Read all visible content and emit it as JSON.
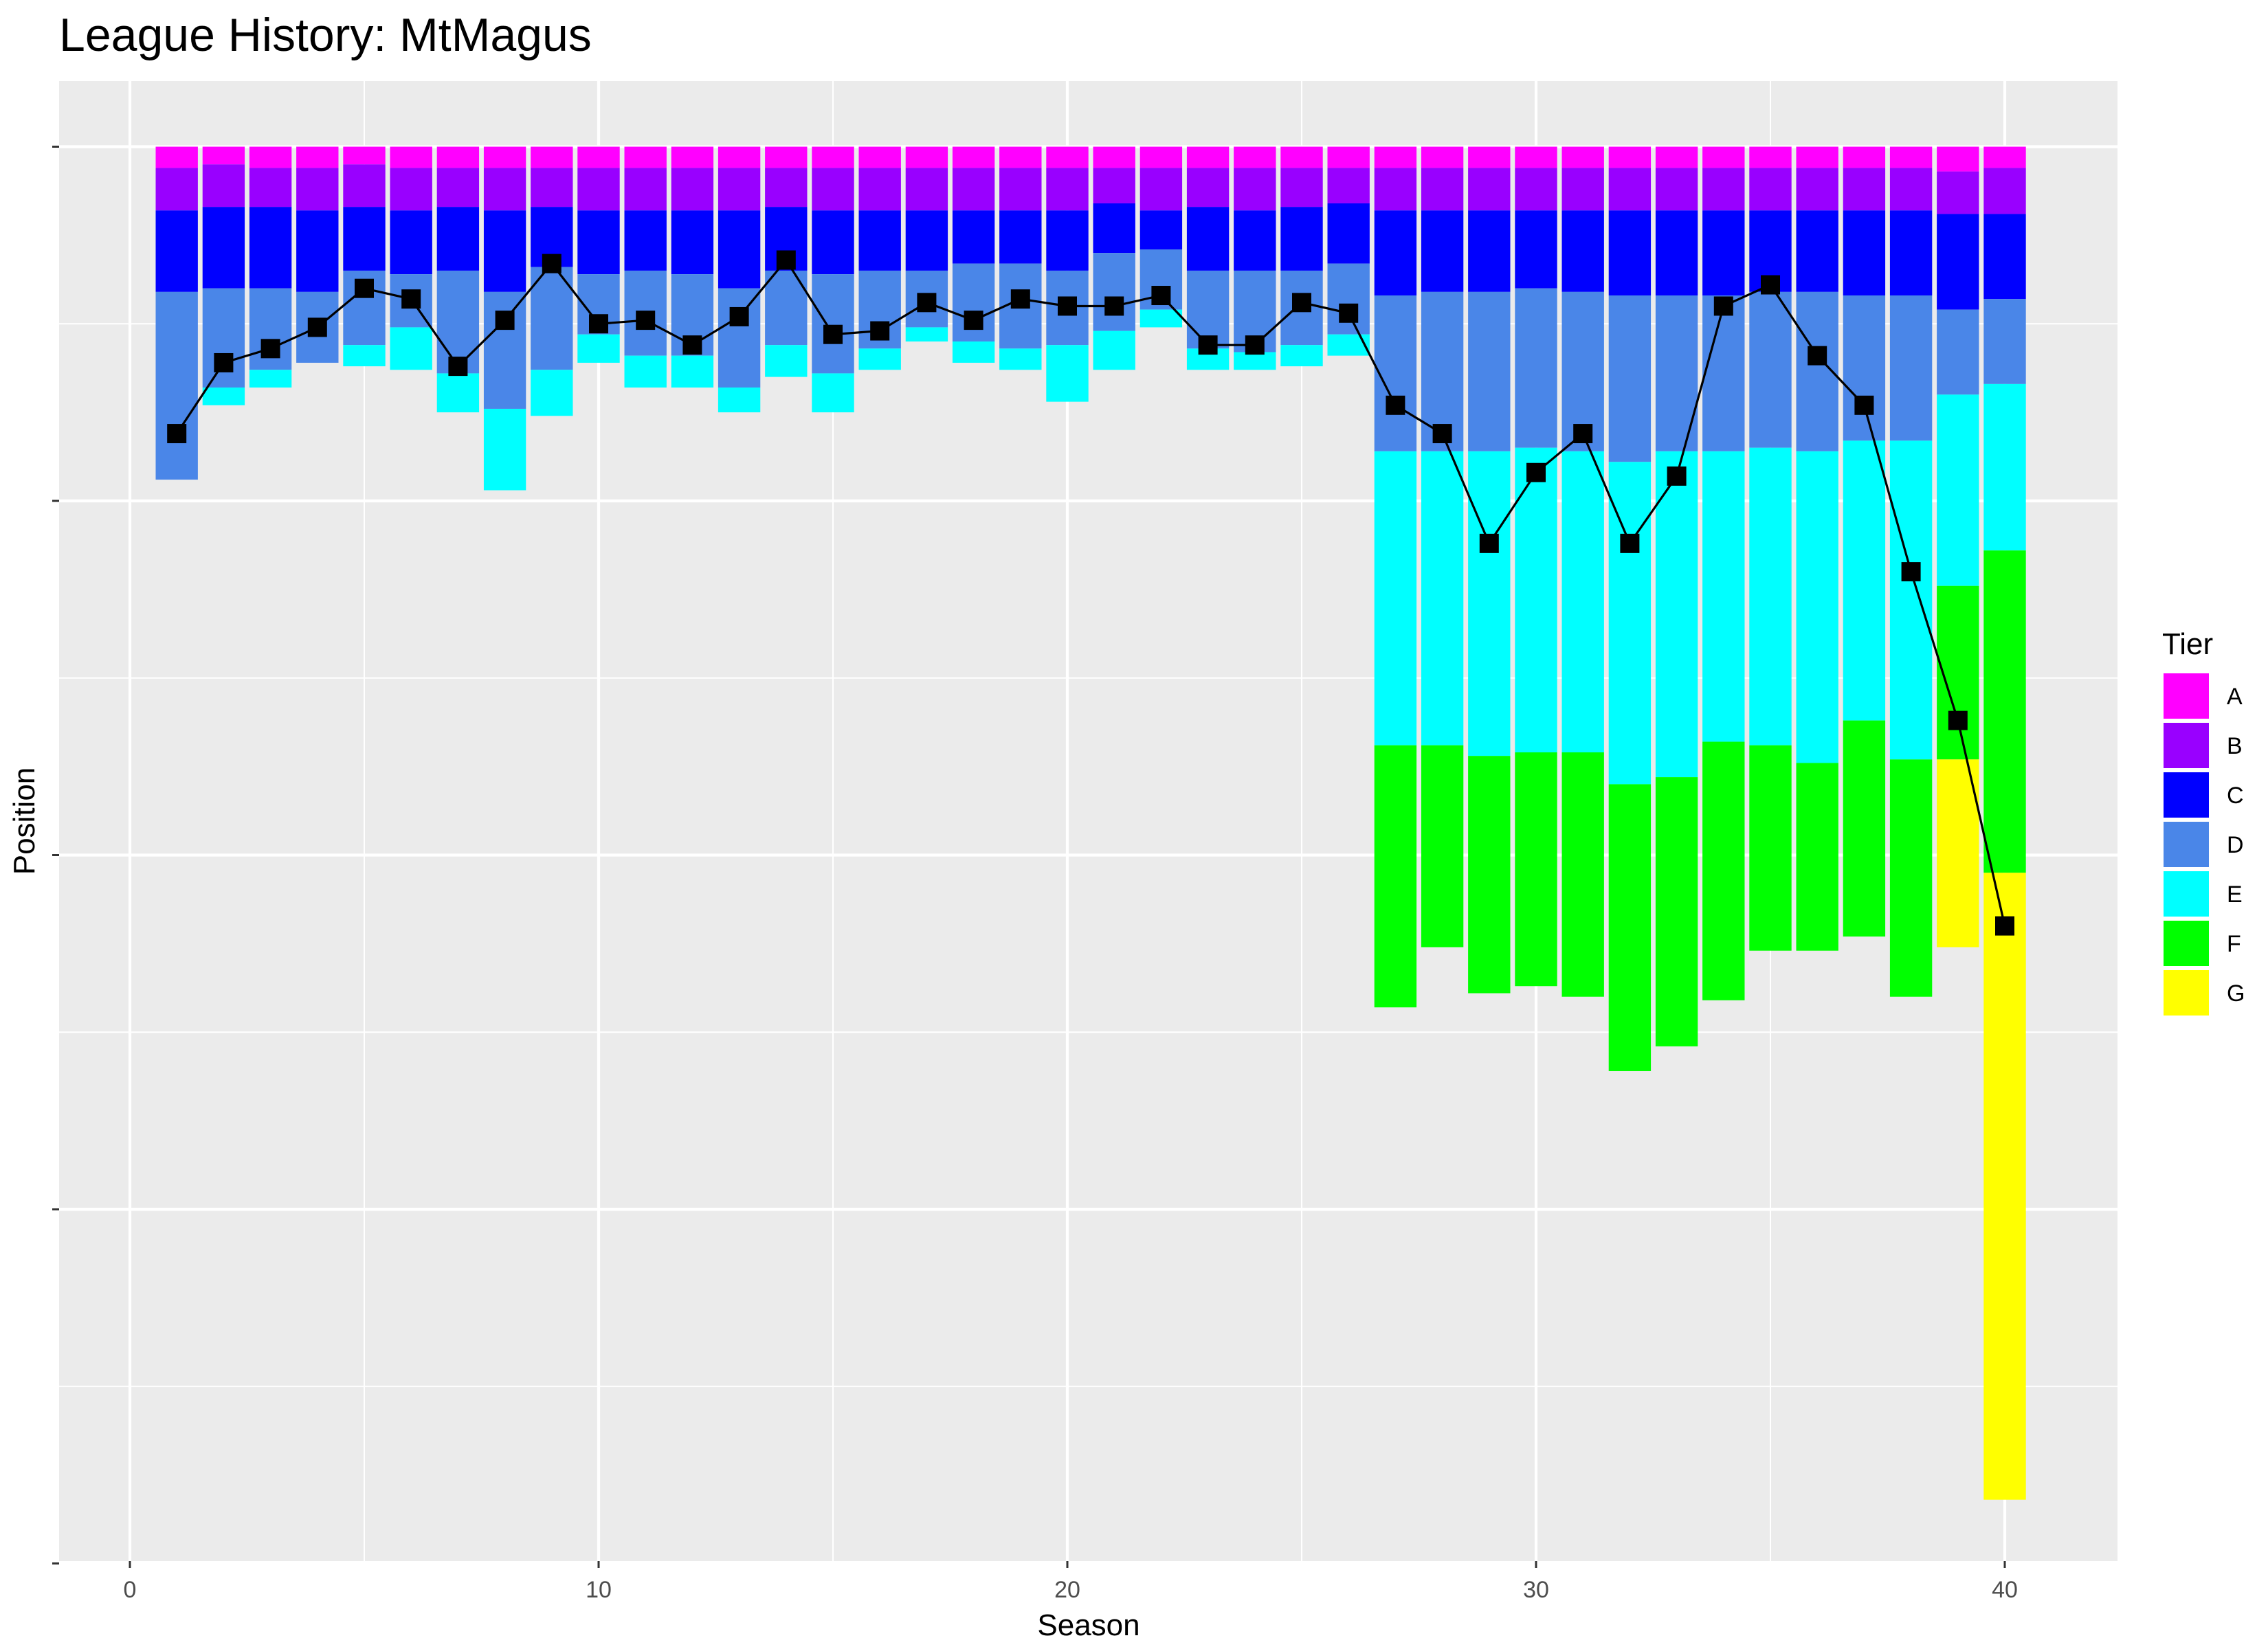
{
  "chart_data": {
    "type": "bar",
    "title": "League History: MtMagus",
    "xlabel": "Season",
    "ylabel": "Position",
    "x_ticks": [
      0,
      10,
      20,
      30,
      40
    ],
    "xlim": [
      -1.5,
      42.5
    ],
    "ylim": [
      0,
      4
    ],
    "y_scale": "position, top = 0, increasing downward; tick labels not shown",
    "grid": true,
    "legend": {
      "title": "Tier",
      "position": "right"
    },
    "tiers": [
      {
        "name": "A",
        "color": "#FF00FF"
      },
      {
        "name": "B",
        "color": "#9900FF"
      },
      {
        "name": "C",
        "color": "#0000FF"
      },
      {
        "name": "D",
        "color": "#4A86E8"
      },
      {
        "name": "E",
        "color": "#00FFFF"
      },
      {
        "name": "F",
        "color": "#00FF00"
      },
      {
        "name": "G",
        "color": "#FFFF00"
      }
    ],
    "series_note": "Each season's bar is a stack of tier boundaries [A-end, B-end, C-end, D-end, E-end, F-end, G-end] in position units; 0-length means tier absent. Line marks the team's position.",
    "seasons": [
      {
        "season": 1,
        "bounds": [
          0.06,
          0.18,
          0.41,
          0.94,
          0.94,
          0.94,
          0.94
        ],
        "position": 0.81
      },
      {
        "season": 2,
        "bounds": [
          0.05,
          0.17,
          0.4,
          0.68,
          0.73,
          0.73,
          0.73
        ],
        "position": 0.61
      },
      {
        "season": 3,
        "bounds": [
          0.06,
          0.17,
          0.4,
          0.63,
          0.68,
          0.68,
          0.68
        ],
        "position": 0.57
      },
      {
        "season": 4,
        "bounds": [
          0.06,
          0.18,
          0.41,
          0.61,
          0.61,
          0.61,
          0.61
        ],
        "position": 0.51
      },
      {
        "season": 5,
        "bounds": [
          0.05,
          0.17,
          0.35,
          0.56,
          0.62,
          0.62,
          0.62
        ],
        "position": 0.4
      },
      {
        "season": 6,
        "bounds": [
          0.06,
          0.18,
          0.36,
          0.51,
          0.63,
          0.63,
          0.63
        ],
        "position": 0.43
      },
      {
        "season": 7,
        "bounds": [
          0.06,
          0.17,
          0.35,
          0.64,
          0.75,
          0.75,
          0.75
        ],
        "position": 0.62
      },
      {
        "season": 8,
        "bounds": [
          0.06,
          0.18,
          0.41,
          0.74,
          0.97,
          0.97,
          0.97
        ],
        "position": 0.49
      },
      {
        "season": 9,
        "bounds": [
          0.06,
          0.17,
          0.34,
          0.63,
          0.76,
          0.76,
          0.76
        ],
        "position": 0.33
      },
      {
        "season": 10,
        "bounds": [
          0.06,
          0.18,
          0.36,
          0.53,
          0.61,
          0.61,
          0.61
        ],
        "position": 0.5
      },
      {
        "season": 11,
        "bounds": [
          0.06,
          0.18,
          0.35,
          0.59,
          0.68,
          0.68,
          0.68
        ],
        "position": 0.49
      },
      {
        "season": 12,
        "bounds": [
          0.06,
          0.18,
          0.36,
          0.59,
          0.68,
          0.68,
          0.68
        ],
        "position": 0.56
      },
      {
        "season": 13,
        "bounds": [
          0.06,
          0.18,
          0.4,
          0.68,
          0.75,
          0.75,
          0.75
        ],
        "position": 0.48
      },
      {
        "season": 14,
        "bounds": [
          0.06,
          0.17,
          0.35,
          0.56,
          0.65,
          0.65,
          0.65
        ],
        "position": 0.32
      },
      {
        "season": 15,
        "bounds": [
          0.06,
          0.18,
          0.36,
          0.64,
          0.75,
          0.75,
          0.75
        ],
        "position": 0.53
      },
      {
        "season": 16,
        "bounds": [
          0.06,
          0.18,
          0.35,
          0.57,
          0.63,
          0.63,
          0.63
        ],
        "position": 0.52
      },
      {
        "season": 17,
        "bounds": [
          0.06,
          0.18,
          0.35,
          0.51,
          0.55,
          0.55,
          0.55
        ],
        "position": 0.44
      },
      {
        "season": 18,
        "bounds": [
          0.06,
          0.18,
          0.33,
          0.55,
          0.61,
          0.61,
          0.61
        ],
        "position": 0.49
      },
      {
        "season": 19,
        "bounds": [
          0.06,
          0.18,
          0.33,
          0.57,
          0.63,
          0.63,
          0.63
        ],
        "position": 0.43
      },
      {
        "season": 20,
        "bounds": [
          0.06,
          0.18,
          0.35,
          0.56,
          0.72,
          0.72,
          0.72
        ],
        "position": 0.45
      },
      {
        "season": 21,
        "bounds": [
          0.06,
          0.16,
          0.3,
          0.52,
          0.63,
          0.63,
          0.63
        ],
        "position": 0.45
      },
      {
        "season": 22,
        "bounds": [
          0.06,
          0.18,
          0.29,
          0.46,
          0.51,
          0.51,
          0.51
        ],
        "position": 0.42
      },
      {
        "season": 23,
        "bounds": [
          0.06,
          0.17,
          0.35,
          0.57,
          0.63,
          0.63,
          0.63
        ],
        "position": 0.56
      },
      {
        "season": 24,
        "bounds": [
          0.06,
          0.18,
          0.35,
          0.58,
          0.63,
          0.63,
          0.63
        ],
        "position": 0.56
      },
      {
        "season": 25,
        "bounds": [
          0.06,
          0.17,
          0.35,
          0.56,
          0.62,
          0.62,
          0.62
        ],
        "position": 0.44
      },
      {
        "season": 26,
        "bounds": [
          0.06,
          0.16,
          0.33,
          0.53,
          0.59,
          0.59,
          0.59
        ],
        "position": 0.47
      },
      {
        "season": 27,
        "bounds": [
          0.06,
          0.18,
          0.42,
          0.86,
          1.69,
          2.43,
          2.43
        ],
        "position": 0.73
      },
      {
        "season": 28,
        "bounds": [
          0.06,
          0.18,
          0.41,
          0.86,
          1.69,
          2.26,
          2.26
        ],
        "position": 0.81
      },
      {
        "season": 29,
        "bounds": [
          0.06,
          0.18,
          0.41,
          0.86,
          1.72,
          2.39,
          2.39
        ],
        "position": 1.12
      },
      {
        "season": 30,
        "bounds": [
          0.06,
          0.18,
          0.4,
          0.85,
          1.71,
          2.37,
          2.37
        ],
        "position": 0.92
      },
      {
        "season": 31,
        "bounds": [
          0.06,
          0.18,
          0.41,
          0.86,
          1.71,
          2.4,
          2.4
        ],
        "position": 0.81
      },
      {
        "season": 32,
        "bounds": [
          0.06,
          0.18,
          0.42,
          0.89,
          1.8,
          2.61,
          2.61
        ],
        "position": 1.12
      },
      {
        "season": 33,
        "bounds": [
          0.06,
          0.18,
          0.42,
          0.86,
          1.78,
          2.54,
          2.54
        ],
        "position": 0.93
      },
      {
        "season": 34,
        "bounds": [
          0.06,
          0.18,
          0.42,
          0.86,
          1.68,
          2.41,
          2.41
        ],
        "position": 0.45
      },
      {
        "season": 35,
        "bounds": [
          0.06,
          0.18,
          0.41,
          0.85,
          1.69,
          2.27,
          2.27
        ],
        "position": 0.39
      },
      {
        "season": 36,
        "bounds": [
          0.06,
          0.18,
          0.41,
          0.86,
          1.74,
          2.27,
          2.27
        ],
        "position": 0.59
      },
      {
        "season": 37,
        "bounds": [
          0.06,
          0.18,
          0.42,
          0.83,
          1.62,
          2.23,
          2.23
        ],
        "position": 0.73
      },
      {
        "season": 38,
        "bounds": [
          0.06,
          0.18,
          0.42,
          0.83,
          1.73,
          2.4,
          2.4
        ],
        "position": 1.2
      },
      {
        "season": 39,
        "bounds": [
          0.07,
          0.19,
          0.46,
          0.7,
          1.24,
          1.73,
          2.26
        ],
        "position": 1.62
      },
      {
        "season": 40,
        "bounds": [
          0.06,
          0.19,
          0.43,
          0.67,
          1.14,
          2.05,
          3.82
        ],
        "position": 2.2
      }
    ]
  }
}
